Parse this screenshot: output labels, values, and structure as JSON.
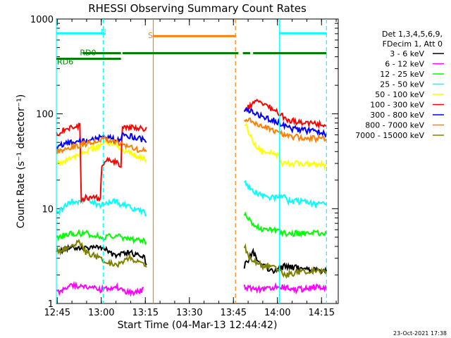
{
  "chart_data": {
    "type": "line",
    "title": "RHESSI Observing Summary Count Rates",
    "xlabel": "Start Time (04-Mar-13 12:44:42)",
    "ylabel": "Count Rate (s⁻¹ detector⁻¹)",
    "y_scale": "log",
    "ylim": [
      1,
      1000
    ],
    "y_ticks": [
      {
        "value": 1,
        "label": "1"
      },
      {
        "value": 10,
        "label": "10"
      },
      {
        "value": 100,
        "label": "100"
      },
      {
        "value": 1000,
        "label": "1000"
      }
    ],
    "xlim_minutes": [
      0,
      96
    ],
    "x_ticks": [
      {
        "value": 0.3,
        "label": "12:45"
      },
      {
        "value": 15.3,
        "label": "13:00"
      },
      {
        "value": 30.3,
        "label": "13:15"
      },
      {
        "value": 45.3,
        "label": "13:30"
      },
      {
        "value": 60.3,
        "label": "13:45"
      },
      {
        "value": 75.3,
        "label": "14:00"
      },
      {
        "value": 90.3,
        "label": "14:15"
      }
    ],
    "legend_header": [
      "Det 1,3,4,5,6,9,",
      "FDecim 1, Att 0"
    ],
    "legend_position": "right",
    "series": [
      {
        "name": "3 - 6 keV",
        "color": "#000000",
        "points": [
          [
            0,
            3.5
          ],
          [
            5,
            4.0
          ],
          [
            10,
            3.8
          ],
          [
            15,
            4.0
          ],
          [
            20,
            3.2
          ],
          [
            25,
            3.5
          ],
          [
            30,
            3.0
          ],
          [
            31,
            2.5
          ],
          [
            64,
            2.5
          ],
          [
            67,
            3.5
          ],
          [
            70,
            2.5
          ],
          [
            74,
            2.2
          ],
          [
            78,
            2.5
          ],
          [
            84,
            2.3
          ],
          [
            90,
            2.2
          ],
          [
            92,
            2.2
          ]
        ]
      },
      {
        "name": "6 - 12 keV",
        "color": "#ff00ff",
        "points": [
          [
            0,
            1.3
          ],
          [
            5,
            1.6
          ],
          [
            10,
            1.5
          ],
          [
            15,
            1.4
          ],
          [
            20,
            1.5
          ],
          [
            25,
            1.3
          ],
          [
            30,
            1.4
          ],
          [
            64,
            1.5
          ],
          [
            70,
            1.4
          ],
          [
            76,
            1.5
          ],
          [
            82,
            1.4
          ],
          [
            88,
            1.5
          ],
          [
            92,
            1.4
          ]
        ]
      },
      {
        "name": "12 - 25 keV",
        "color": "#00ff00",
        "points": [
          [
            0,
            5.0
          ],
          [
            5,
            5.5
          ],
          [
            10,
            5.5
          ],
          [
            15,
            5.0
          ],
          [
            20,
            5.2
          ],
          [
            25,
            4.8
          ],
          [
            30,
            4.5
          ],
          [
            31,
            4.3
          ],
          [
            64,
            9
          ],
          [
            67,
            7
          ],
          [
            70,
            6
          ],
          [
            74,
            6
          ],
          [
            78,
            5.5
          ],
          [
            84,
            5.5
          ],
          [
            90,
            5.5
          ],
          [
            92,
            5.5
          ]
        ]
      },
      {
        "name": "25 - 50 keV",
        "color": "#00ffff",
        "points": [
          [
            0,
            9
          ],
          [
            2,
            10
          ],
          [
            5,
            12
          ],
          [
            8,
            12
          ],
          [
            10,
            13
          ],
          [
            12,
            12
          ],
          [
            14,
            11
          ],
          [
            16,
            11
          ],
          [
            18,
            12
          ],
          [
            20,
            12
          ],
          [
            22,
            11
          ],
          [
            24,
            11
          ],
          [
            26,
            10
          ],
          [
            28,
            10
          ],
          [
            30,
            9
          ],
          [
            31,
            8
          ],
          [
            64,
            20
          ],
          [
            66,
            16
          ],
          [
            68,
            15
          ],
          [
            70,
            14
          ],
          [
            73,
            13
          ],
          [
            75,
            13
          ],
          [
            77,
            14
          ],
          [
            79,
            12
          ],
          [
            82,
            12
          ],
          [
            85,
            12
          ],
          [
            88,
            11
          ],
          [
            92,
            11
          ]
        ]
      },
      {
        "name": "50 - 100 keV",
        "color": "#ffff00",
        "points": [
          [
            0,
            30
          ],
          [
            3,
            32
          ],
          [
            6,
            35
          ],
          [
            10,
            40
          ],
          [
            14,
            45
          ],
          [
            16,
            50
          ],
          [
            19,
            48
          ],
          [
            21,
            45
          ],
          [
            24,
            40
          ],
          [
            27,
            37
          ],
          [
            30,
            33
          ],
          [
            31,
            30
          ],
          [
            64,
            80
          ],
          [
            66,
            60
          ],
          [
            68,
            45
          ],
          [
            70,
            40
          ],
          [
            73,
            38
          ],
          [
            75,
            37
          ],
          [
            77,
            30
          ],
          [
            80,
            30
          ],
          [
            84,
            30
          ],
          [
            88,
            29
          ],
          [
            92,
            29
          ]
        ]
      },
      {
        "name": "100 - 300 keV",
        "color": "#ff0000",
        "points": [
          [
            0,
            60
          ],
          [
            3,
            70
          ],
          [
            6,
            75
          ],
          [
            8,
            75
          ],
          [
            8.5,
            12
          ],
          [
            10,
            13
          ],
          [
            14,
            13
          ],
          [
            15,
            13
          ],
          [
            15.5,
            30
          ],
          [
            18,
            33
          ],
          [
            21,
            30
          ],
          [
            22,
            29
          ],
          [
            22.5,
            75
          ],
          [
            25,
            72
          ],
          [
            28,
            70
          ],
          [
            31,
            70
          ],
          [
            64,
            110
          ],
          [
            66,
            120
          ],
          [
            68,
            140
          ],
          [
            70,
            130
          ],
          [
            72,
            120
          ],
          [
            74,
            110
          ],
          [
            76,
            100
          ],
          [
            78,
            90
          ],
          [
            80,
            85
          ],
          [
            84,
            80
          ],
          [
            88,
            78
          ],
          [
            92,
            75
          ]
        ]
      },
      {
        "name": "300 - 800 keV",
        "color": "#0000ff",
        "points": [
          [
            0,
            45
          ],
          [
            3,
            48
          ],
          [
            6,
            50
          ],
          [
            10,
            52
          ],
          [
            14,
            55
          ],
          [
            16,
            58
          ],
          [
            19,
            55
          ],
          [
            21,
            52
          ],
          [
            22,
            50
          ],
          [
            22.5,
            60
          ],
          [
            25,
            58
          ],
          [
            28,
            55
          ],
          [
            31,
            52
          ],
          [
            64,
            110
          ],
          [
            66,
            110
          ],
          [
            68,
            100
          ],
          [
            70,
            95
          ],
          [
            72,
            90
          ],
          [
            74,
            85
          ],
          [
            76,
            80
          ],
          [
            78,
            75
          ],
          [
            80,
            70
          ],
          [
            84,
            68
          ],
          [
            88,
            65
          ],
          [
            92,
            62
          ]
        ]
      },
      {
        "name": "800 - 7000 keV",
        "color": "#ff8000",
        "points": [
          [
            0,
            40
          ],
          [
            3,
            42
          ],
          [
            6,
            45
          ],
          [
            10,
            48
          ],
          [
            14,
            52
          ],
          [
            16,
            55
          ],
          [
            19,
            52
          ],
          [
            21,
            50
          ],
          [
            22,
            48
          ],
          [
            25,
            45
          ],
          [
            28,
            42
          ],
          [
            31,
            40
          ],
          [
            64,
            90
          ],
          [
            66,
            85
          ],
          [
            68,
            80
          ],
          [
            70,
            75
          ],
          [
            72,
            70
          ],
          [
            74,
            65
          ],
          [
            76,
            62
          ],
          [
            78,
            60
          ],
          [
            80,
            58
          ],
          [
            84,
            56
          ],
          [
            88,
            55
          ],
          [
            92,
            54
          ]
        ]
      },
      {
        "name": "7000 - 15000 keV",
        "color": "#808000",
        "points": [
          [
            0,
            3.5
          ],
          [
            5,
            4.0
          ],
          [
            8,
            4.5
          ],
          [
            10,
            3.5
          ],
          [
            15,
            3.0
          ],
          [
            20,
            2.5
          ],
          [
            25,
            3.0
          ],
          [
            30,
            2.5
          ],
          [
            31,
            2.3
          ],
          [
            64,
            4
          ],
          [
            66,
            3
          ],
          [
            70,
            2.5
          ],
          [
            74,
            2.5
          ],
          [
            78,
            2
          ],
          [
            84,
            2.2
          ],
          [
            90,
            2.2
          ],
          [
            92,
            2.2
          ]
        ]
      }
    ],
    "state_bars": [
      {
        "label": "N",
        "color": "#00ffff",
        "level": 0.95,
        "segments": [
          [
            0,
            16
          ],
          [
            76,
            92
          ]
        ]
      },
      {
        "label": "S",
        "color": "#ff8000",
        "level": 0.94,
        "segments": [
          [
            33,
            61
          ]
        ]
      },
      {
        "label": "RD0",
        "color": "#008000",
        "level": 0.88,
        "segments": [
          [
            9,
            22
          ],
          [
            22.5,
            62
          ],
          [
            63.5,
            66
          ],
          [
            67,
            92
          ]
        ]
      },
      {
        "label": "RD6",
        "color": "#008000",
        "level": 0.86,
        "segments": [
          [
            0,
            22
          ]
        ]
      }
    ],
    "vertical_lines": [
      {
        "x": 0,
        "color": "#00ffff",
        "style": "solid"
      },
      {
        "x": 16,
        "color": "#00ffff",
        "style": "dashed"
      },
      {
        "x": 33,
        "color": "#ff8000",
        "style": "solid"
      },
      {
        "x": 61,
        "color": "#ff8000",
        "style": "dashed"
      },
      {
        "x": 76,
        "color": "#00ffff",
        "style": "solid"
      },
      {
        "x": 92,
        "color": "#00ffff",
        "style": "dashed"
      }
    ]
  },
  "footer": {
    "stamp": "23-Oct-2021 17:38"
  }
}
